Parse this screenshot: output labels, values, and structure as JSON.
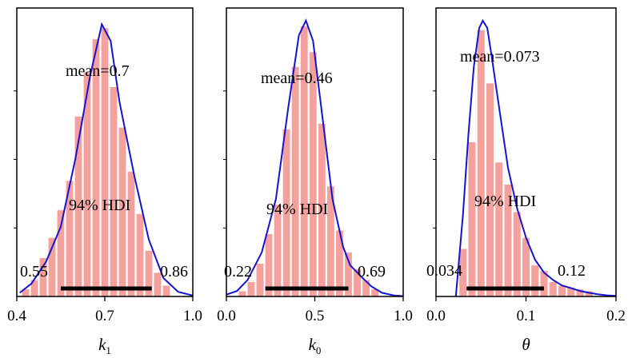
{
  "chart_data": [
    {
      "type": "histogram",
      "xlabel": "k",
      "xlabel_sub": "1",
      "xlim": [
        0.4,
        1.0
      ],
      "xticks": [
        0.4,
        0.7,
        1.0
      ],
      "xtick_labels": [
        "0.4",
        "0.7",
        "1.0"
      ],
      "bins": [
        {
          "x0": 0.415,
          "x1": 0.445,
          "count": 0.4
        },
        {
          "x0": 0.445,
          "x1": 0.475,
          "count": 0.9
        },
        {
          "x0": 0.475,
          "x1": 0.505,
          "count": 2.1
        },
        {
          "x0": 0.505,
          "x1": 0.535,
          "count": 3.2
        },
        {
          "x0": 0.535,
          "x1": 0.565,
          "count": 4.7
        },
        {
          "x0": 0.565,
          "x1": 0.595,
          "count": 6.3
        },
        {
          "x0": 0.595,
          "x1": 0.625,
          "count": 9.8
        },
        {
          "x0": 0.625,
          "x1": 0.655,
          "count": 12.2
        },
        {
          "x0": 0.655,
          "x1": 0.685,
          "count": 14.0
        },
        {
          "x0": 0.685,
          "x1": 0.715,
          "count": 14.6
        },
        {
          "x0": 0.715,
          "x1": 0.745,
          "count": 11.4
        },
        {
          "x0": 0.745,
          "x1": 0.775,
          "count": 9.2
        },
        {
          "x0": 0.775,
          "x1": 0.805,
          "count": 6.8
        },
        {
          "x0": 0.805,
          "x1": 0.835,
          "count": 4.5
        },
        {
          "x0": 0.835,
          "x1": 0.865,
          "count": 2.5
        },
        {
          "x0": 0.865,
          "x1": 0.895,
          "count": 1.3
        },
        {
          "x0": 0.895,
          "x1": 0.925,
          "count": 0.6
        }
      ],
      "kde": [
        [
          0.41,
          0.2
        ],
        [
          0.45,
          0.7
        ],
        [
          0.5,
          1.9
        ],
        [
          0.55,
          3.8
        ],
        [
          0.6,
          7.5
        ],
        [
          0.65,
          12.0
        ],
        [
          0.69,
          14.8
        ],
        [
          0.72,
          13.9
        ],
        [
          0.75,
          10.6
        ],
        [
          0.8,
          6.6
        ],
        [
          0.85,
          3.1
        ],
        [
          0.9,
          1.0
        ],
        [
          0.95,
          0.25
        ],
        [
          1.0,
          0.05
        ]
      ],
      "ymax": 15.6,
      "mean_label": "mean=0.7",
      "hdi_label": "94% HDI",
      "hdi": [
        0.55,
        0.86
      ],
      "hdi_low_label": "0.55",
      "hdi_high_label": "0.86"
    },
    {
      "type": "histogram",
      "xlabel": "k",
      "xlabel_sub": "0",
      "xlim": [
        0.0,
        1.0
      ],
      "xticks": [
        0.0,
        0.5,
        1.0
      ],
      "xtick_labels": [
        "0.0",
        "0.5",
        "1.0"
      ],
      "bins": [
        {
          "x0": 0.065,
          "x1": 0.115,
          "count": 0.3
        },
        {
          "x0": 0.115,
          "x1": 0.165,
          "count": 0.8
        },
        {
          "x0": 0.165,
          "x1": 0.215,
          "count": 1.8
        },
        {
          "x0": 0.215,
          "x1": 0.265,
          "count": 3.4
        },
        {
          "x0": 0.265,
          "x1": 0.315,
          "count": 5.0
        },
        {
          "x0": 0.315,
          "x1": 0.365,
          "count": 9.1
        },
        {
          "x0": 0.365,
          "x1": 0.415,
          "count": 12.5
        },
        {
          "x0": 0.415,
          "x1": 0.465,
          "count": 14.7
        },
        {
          "x0": 0.465,
          "x1": 0.515,
          "count": 13.3
        },
        {
          "x0": 0.515,
          "x1": 0.565,
          "count": 9.4
        },
        {
          "x0": 0.565,
          "x1": 0.615,
          "count": 6.0
        },
        {
          "x0": 0.615,
          "x1": 0.665,
          "count": 3.6
        },
        {
          "x0": 0.665,
          "x1": 0.715,
          "count": 2.4
        },
        {
          "x0": 0.715,
          "x1": 0.765,
          "count": 1.5
        },
        {
          "x0": 0.765,
          "x1": 0.815,
          "count": 0.9
        },
        {
          "x0": 0.815,
          "x1": 0.865,
          "count": 0.4
        }
      ],
      "kde": [
        [
          0.0,
          0.1
        ],
        [
          0.06,
          0.3
        ],
        [
          0.12,
          0.9
        ],
        [
          0.2,
          2.4
        ],
        [
          0.28,
          5.3
        ],
        [
          0.35,
          10.3
        ],
        [
          0.41,
          14.2
        ],
        [
          0.45,
          15.0
        ],
        [
          0.49,
          13.9
        ],
        [
          0.55,
          9.2
        ],
        [
          0.6,
          5.3
        ],
        [
          0.66,
          2.7
        ],
        [
          0.7,
          1.7
        ],
        [
          0.76,
          1.1
        ],
        [
          0.82,
          0.55
        ],
        [
          0.88,
          0.2
        ],
        [
          0.95,
          0.05
        ],
        [
          1.0,
          0.02
        ]
      ],
      "ymax": 15.6,
      "mean_label": "mean=0.46",
      "hdi_label": "94% HDI",
      "hdi": [
        0.22,
        0.69
      ],
      "hdi_low_label": "0.22",
      "hdi_high_label": "0.69"
    },
    {
      "type": "histogram",
      "xlabel": "θ",
      "xlabel_sub": "",
      "xlim": [
        0.0,
        0.2
      ],
      "xticks": [
        0.0,
        0.1,
        0.2
      ],
      "xtick_labels": [
        "0.0",
        "0.1",
        "0.2"
      ],
      "bins": [
        {
          "x0": 0.025,
          "x1": 0.035,
          "count": 2.6
        },
        {
          "x0": 0.035,
          "x1": 0.045,
          "count": 8.4
        },
        {
          "x0": 0.045,
          "x1": 0.055,
          "count": 14.5
        },
        {
          "x0": 0.055,
          "x1": 0.065,
          "count": 11.6
        },
        {
          "x0": 0.065,
          "x1": 0.075,
          "count": 7.3
        },
        {
          "x0": 0.075,
          "x1": 0.085,
          "count": 6.1
        },
        {
          "x0": 0.085,
          "x1": 0.095,
          "count": 4.6
        },
        {
          "x0": 0.095,
          "x1": 0.105,
          "count": 3.2
        },
        {
          "x0": 0.105,
          "x1": 0.115,
          "count": 1.7
        },
        {
          "x0": 0.115,
          "x1": 0.125,
          "count": 1.4
        },
        {
          "x0": 0.125,
          "x1": 0.135,
          "count": 0.8
        },
        {
          "x0": 0.135,
          "x1": 0.145,
          "count": 0.6
        },
        {
          "x0": 0.145,
          "x1": 0.155,
          "count": 0.5
        },
        {
          "x0": 0.155,
          "x1": 0.165,
          "count": 0.4
        },
        {
          "x0": 0.165,
          "x1": 0.175,
          "count": 0.3
        }
      ],
      "kde": [
        [
          0.022,
          0.0
        ],
        [
          0.03,
          4.5
        ],
        [
          0.036,
          8.8
        ],
        [
          0.042,
          12.5
        ],
        [
          0.048,
          14.6
        ],
        [
          0.052,
          15.0
        ],
        [
          0.057,
          14.6
        ],
        [
          0.062,
          13.0
        ],
        [
          0.07,
          10.3
        ],
        [
          0.08,
          7.0
        ],
        [
          0.09,
          4.8
        ],
        [
          0.1,
          3.2
        ],
        [
          0.11,
          2.0
        ],
        [
          0.12,
          1.3
        ],
        [
          0.13,
          0.9
        ],
        [
          0.14,
          0.6
        ],
        [
          0.15,
          0.45
        ],
        [
          0.16,
          0.3
        ],
        [
          0.17,
          0.2
        ],
        [
          0.18,
          0.12
        ],
        [
          0.19,
          0.06
        ],
        [
          0.2,
          0.03
        ]
      ],
      "ymax": 15.6,
      "mean_label": "mean=0.073",
      "hdi_label": "94% HDI",
      "hdi": [
        0.034,
        0.12
      ],
      "hdi_low_label": "0.034",
      "hdi_high_label": "0.12"
    }
  ],
  "colors": {
    "bar": "#f4a09c",
    "kde": "#1414d2",
    "hdi": "#000000"
  }
}
